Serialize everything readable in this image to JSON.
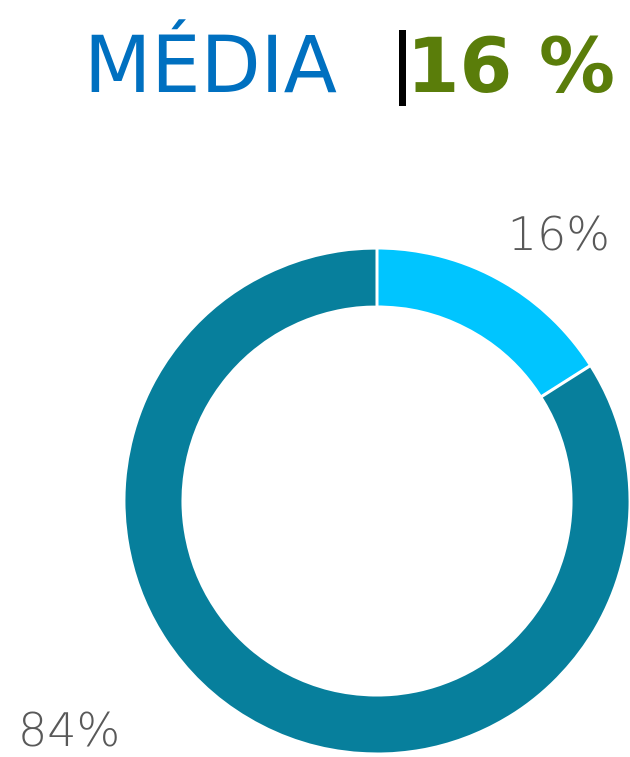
{
  "chart_data": {
    "type": "donut",
    "title": "MÉDIA",
    "subtitle": "16 %",
    "values": [
      16,
      84
    ],
    "value_labels": [
      "16%",
      "84%"
    ],
    "colors": [
      "#00c5ff",
      "#077f9c"
    ]
  }
}
